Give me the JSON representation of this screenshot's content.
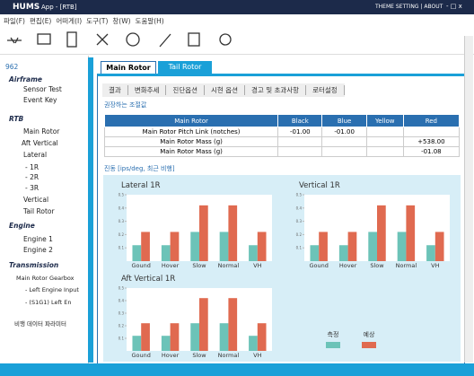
{
  "header": {
    "app": "HUMS",
    "title": "App - [RTB]",
    "links": "THEME SETTING | ABOUT",
    "controls": "- □ x"
  },
  "menu": [
    "파일(F)",
    "편집(E)",
    "어떠게(I)",
    "도구(T)",
    "창(W)",
    "도움말(H)"
  ],
  "tree": {
    "items": [
      "962",
      "Airframe",
      "Sensor Test",
      "Event Key",
      "RTB",
      "Main Rotor",
      "Aft Vertical",
      "Lateral",
      "- 1R",
      "- 2R",
      "- 3R",
      "Vertical",
      "Tail Rotor",
      "Engine",
      "Engine 1",
      "Engine 2",
      "Transmission",
      "Main Rotor Gearbox",
      "- Left Engine Input",
      "- (S1G1) Left En",
      "비행 데이터 파라미터"
    ]
  },
  "tabs": [
    "Main Rotor",
    "Tail Rotor"
  ],
  "subtabs": [
    "결과",
    "변화추세",
    "진단옵션",
    "시현 옵션",
    "경고 및 초과사항",
    "로터설정"
  ],
  "sections": [
    "권장하는 조절값",
    "진동 [ips/deg, 최근 비행]"
  ],
  "table": {
    "header": [
      "Main Rotor",
      "Black",
      "Blue",
      "Yellow",
      "Red"
    ],
    "rows": [
      [
        "Main Rotor Pitch Link (notches)",
        "-01.00",
        "-01.00",
        null,
        null
      ],
      [
        "Main Rotor Mass (g)",
        null,
        null,
        null,
        "+538.00"
      ],
      [
        "Main Rotor Mass (g)",
        null,
        null,
        null,
        "-01.08"
      ]
    ]
  },
  "chart_data": [
    {
      "type": "bar",
      "title": "Lateral 1R",
      "categories": [
        "Gound",
        "Hover",
        "Slow",
        "Normal",
        "VH"
      ],
      "ylim": [
        0,
        0.5
      ],
      "yticks": [
        0.1,
        0.2,
        0.3,
        0.4,
        0.5
      ],
      "series": [
        {
          "color": "#6cc3b8",
          "values": [
            0.12,
            0.12,
            0.22,
            0.22,
            0.12
          ]
        },
        {
          "color": "#e06a50",
          "values": [
            0.22,
            0.22,
            0.42,
            0.42,
            0.22
          ]
        }
      ]
    },
    {
      "type": "bar",
      "title": "Vertical 1R",
      "categories": [
        "Gound",
        "Hover",
        "Slow",
        "Normal",
        "VH"
      ],
      "ylim": [
        0,
        0.5
      ],
      "yticks": [
        0.1,
        0.2,
        0.3,
        0.4,
        0.5
      ],
      "series": [
        {
          "color": "#6cc3b8",
          "values": [
            0.12,
            0.12,
            0.22,
            0.22,
            0.12
          ]
        },
        {
          "color": "#e06a50",
          "values": [
            0.22,
            0.22,
            0.42,
            0.42,
            0.22
          ]
        }
      ]
    },
    {
      "type": "bar",
      "title": "Aft Vertical 1R",
      "categories": [
        "Gound",
        "Hover",
        "Slow",
        "Normal",
        "VH"
      ],
      "ylim": [
        0,
        0.5
      ],
      "yticks": [
        0.1,
        0.2,
        0.3,
        0.4,
        0.5
      ],
      "series": [
        {
          "name": "측정",
          "color": "#6cc3b8",
          "values": [
            0.12,
            0.12,
            0.22,
            0.22,
            0.12
          ]
        },
        {
          "name": "예상",
          "color": "#e06a50",
          "values": [
            0.22,
            0.22,
            0.42,
            0.42,
            0.22
          ]
        }
      ]
    }
  ]
}
